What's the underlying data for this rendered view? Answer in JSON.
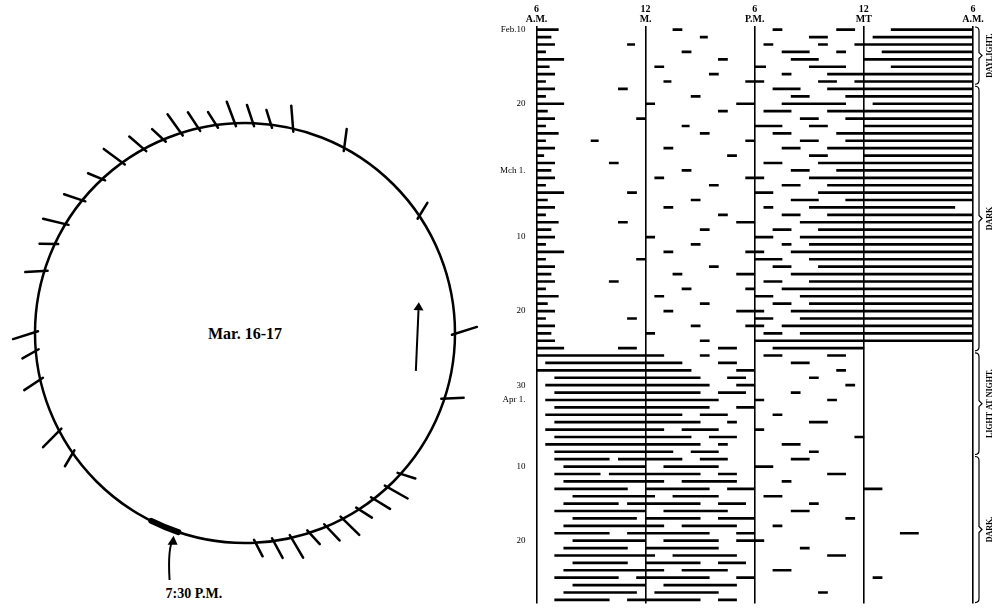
{
  "chart_data": {
    "type": "bar",
    "orientation": "horizontal",
    "color": "#000000",
    "grid": true,
    "xlim": [
      6,
      30
    ],
    "xticks": [
      {
        "value": 6,
        "label": "6 A.M."
      },
      {
        "value": 12,
        "label": "12 M."
      },
      {
        "value": 18,
        "label": "6 P.M."
      },
      {
        "value": 24,
        "label": "12 MT"
      },
      {
        "value": 30,
        "label": "6 A.M."
      }
    ],
    "categories": [
      "Feb.10",
      null,
      null,
      null,
      null,
      null,
      null,
      null,
      null,
      null,
      "20",
      null,
      null,
      null,
      null,
      null,
      null,
      null,
      null,
      "Mch 1.",
      null,
      null,
      null,
      null,
      null,
      null,
      null,
      null,
      "10",
      null,
      null,
      null,
      null,
      null,
      null,
      null,
      null,
      null,
      "20",
      null,
      null,
      null,
      null,
      null,
      null,
      null,
      null,
      null,
      "30",
      null,
      "Apr 1.",
      null,
      null,
      null,
      null,
      null,
      null,
      null,
      null,
      "10",
      null,
      null,
      null,
      null,
      null,
      null,
      null,
      null,
      null,
      "20",
      null,
      null,
      null,
      null,
      null,
      null,
      null,
      null
    ],
    "values": [
      [
        [
          6,
          7.2
        ],
        [
          13.5,
          14
        ],
        [
          19,
          19.5
        ],
        [
          22.5,
          23.5
        ],
        [
          25.5,
          30
        ]
      ],
      [
        [
          6,
          6.8
        ],
        [
          15,
          15.4
        ],
        [
          21,
          22
        ],
        [
          24.5,
          30
        ]
      ],
      [
        [
          6,
          7
        ],
        [
          11,
          11.4
        ],
        [
          18.5,
          19
        ],
        [
          21.5,
          22
        ],
        [
          23.5,
          30
        ]
      ],
      [
        [
          6,
          6.5
        ],
        [
          14,
          14.5
        ],
        [
          19.5,
          21
        ],
        [
          22.5,
          23
        ],
        [
          25,
          30
        ]
      ],
      [
        [
          6,
          7.5
        ],
        [
          16,
          16.5
        ],
        [
          20,
          21.5
        ],
        [
          24,
          30
        ]
      ],
      [
        [
          6,
          6.7
        ],
        [
          12.5,
          13
        ],
        [
          18,
          18.6
        ],
        [
          21,
          23
        ],
        [
          25.5,
          30
        ]
      ],
      [
        [
          6,
          7
        ],
        [
          15.5,
          16
        ],
        [
          19.5,
          20
        ],
        [
          22,
          30
        ]
      ],
      [
        [
          6,
          6.5
        ],
        [
          13,
          13.4
        ],
        [
          17.5,
          18.5
        ],
        [
          21.5,
          22.5
        ],
        [
          23.5,
          30
        ]
      ],
      [
        [
          6,
          7
        ],
        [
          10.5,
          11
        ],
        [
          19,
          20.5
        ],
        [
          22,
          30
        ]
      ],
      [
        [
          6,
          6.5
        ],
        [
          14.5,
          15
        ],
        [
          20,
          21
        ],
        [
          23,
          30
        ]
      ],
      [
        [
          6,
          7.5
        ],
        [
          12,
          12.5
        ],
        [
          17,
          18
        ],
        [
          19.5,
          23
        ],
        [
          24.5,
          30
        ]
      ],
      [
        [
          6,
          6.6
        ],
        [
          16,
          16.5
        ],
        [
          18.5,
          20
        ],
        [
          22,
          30
        ]
      ],
      [
        [
          6,
          7
        ],
        [
          11.5,
          12
        ],
        [
          20.5,
          21.5
        ],
        [
          23,
          30
        ]
      ],
      [
        [
          6,
          6.5
        ],
        [
          14,
          14.4
        ],
        [
          18,
          19.5
        ],
        [
          21,
          22
        ],
        [
          24,
          30
        ]
      ],
      [
        [
          6,
          7.2
        ],
        [
          15,
          15.5
        ],
        [
          19,
          20
        ],
        [
          22.5,
          30
        ]
      ],
      [
        [
          6,
          6.5
        ],
        [
          9,
          9.4
        ],
        [
          17.5,
          18
        ],
        [
          20.5,
          21.5
        ],
        [
          23,
          30
        ]
      ],
      [
        [
          6,
          7
        ],
        [
          13,
          13.5
        ],
        [
          19.5,
          20.5
        ],
        [
          22,
          30
        ]
      ],
      [
        [
          6,
          6.4
        ],
        [
          16.5,
          17
        ],
        [
          21,
          22
        ],
        [
          24,
          30
        ]
      ],
      [
        [
          6,
          7
        ],
        [
          10,
          10.5
        ],
        [
          18.5,
          19.5
        ],
        [
          21.5,
          30
        ]
      ],
      [
        [
          6,
          6.8
        ],
        [
          14,
          14.5
        ],
        [
          20,
          21
        ],
        [
          22.5,
          30
        ]
      ],
      [
        [
          6,
          7
        ],
        [
          12.5,
          13
        ],
        [
          17.5,
          18.5
        ],
        [
          21,
          30
        ]
      ],
      [
        [
          6,
          6.5
        ],
        [
          15.5,
          16
        ],
        [
          19.5,
          20.5
        ],
        [
          22,
          30
        ]
      ],
      [
        [
          6,
          7.5
        ],
        [
          11,
          11.5
        ],
        [
          18,
          19
        ],
        [
          21.5,
          30
        ]
      ],
      [
        [
          6,
          6.6
        ],
        [
          14.5,
          15
        ],
        [
          20,
          21.5
        ],
        [
          23,
          30
        ]
      ],
      [
        [
          6,
          7
        ],
        [
          13,
          13.5
        ],
        [
          18.5,
          19
        ],
        [
          21,
          29
        ]
      ],
      [
        [
          6,
          6.5
        ],
        [
          16,
          16.5
        ],
        [
          19.5,
          20.5
        ],
        [
          22,
          30
        ]
      ],
      [
        [
          6,
          7.2
        ],
        [
          10.5,
          11
        ],
        [
          17,
          18
        ],
        [
          20.5,
          30
        ]
      ],
      [
        [
          6,
          6.8
        ],
        [
          15,
          15.5
        ],
        [
          19,
          20
        ],
        [
          21.5,
          30
        ]
      ],
      [
        [
          6,
          7
        ],
        [
          12,
          12.5
        ],
        [
          18,
          19
        ],
        [
          20.5,
          30
        ]
      ],
      [
        [
          6,
          6.5
        ],
        [
          14.5,
          15
        ],
        [
          19.5,
          20
        ],
        [
          21,
          30
        ]
      ],
      [
        [
          6,
          7.5
        ],
        [
          13,
          13.5
        ],
        [
          17.5,
          18.5
        ],
        [
          20,
          30
        ]
      ],
      [
        [
          6,
          6.5
        ],
        [
          11.5,
          12
        ],
        [
          18,
          19.5
        ],
        [
          21,
          30
        ]
      ],
      [
        [
          6,
          7
        ],
        [
          15.5,
          16
        ],
        [
          19,
          20
        ],
        [
          21.5,
          30
        ]
      ],
      [
        [
          6,
          6.8
        ],
        [
          13.5,
          14
        ],
        [
          17,
          18
        ],
        [
          20,
          30
        ]
      ],
      [
        [
          6,
          7
        ],
        [
          10,
          10.5
        ],
        [
          18.5,
          19.5
        ],
        [
          21,
          30
        ]
      ],
      [
        [
          6,
          6.5
        ],
        [
          14,
          14.5
        ],
        [
          17.5,
          18
        ],
        [
          19.5,
          30
        ]
      ],
      [
        [
          6,
          7.2
        ],
        [
          12.5,
          13
        ],
        [
          18,
          19
        ],
        [
          20.5,
          30
        ]
      ],
      [
        [
          6,
          6.6
        ],
        [
          15,
          15.5
        ],
        [
          19,
          20
        ],
        [
          21,
          30
        ]
      ],
      [
        [
          6,
          7
        ],
        [
          13,
          13.5
        ],
        [
          17,
          18.5
        ],
        [
          20,
          30
        ]
      ],
      [
        [
          6,
          6.5
        ],
        [
          11,
          11.5
        ],
        [
          18,
          19
        ],
        [
          20.5,
          30
        ]
      ],
      [
        [
          6,
          7
        ],
        [
          14.5,
          15
        ],
        [
          17.5,
          18.5
        ],
        [
          19.5,
          30
        ]
      ],
      [
        [
          6,
          6.8
        ],
        [
          12,
          12.5
        ],
        [
          18.5,
          19.5
        ],
        [
          20.5,
          30
        ]
      ],
      [
        [
          6,
          7
        ],
        [
          15,
          15.5
        ],
        [
          18,
          30
        ]
      ],
      [
        [
          6,
          7.5
        ],
        [
          10.5,
          11.5
        ],
        [
          16,
          17
        ],
        [
          19,
          24
        ]
      ],
      [
        [
          6,
          13
        ],
        [
          15,
          15.5
        ],
        [
          18.5,
          19.5
        ],
        [
          22,
          23
        ]
      ],
      [
        [
          6.5,
          14
        ],
        [
          16,
          17
        ],
        [
          20,
          21
        ]
      ],
      [
        [
          6,
          14.5
        ],
        [
          17,
          18
        ],
        [
          22.5,
          23
        ]
      ],
      [
        [
          7,
          15
        ],
        [
          16.5,
          17.5
        ],
        [
          21,
          21.5
        ]
      ],
      [
        [
          6.5,
          15.5
        ],
        [
          17,
          18
        ],
        [
          23,
          23.5
        ]
      ],
      [
        [
          7,
          15
        ],
        [
          16,
          17.5
        ],
        [
          20,
          20.5
        ]
      ],
      [
        [
          6.5,
          16
        ],
        [
          18,
          18.5
        ],
        [
          22,
          22.5
        ]
      ],
      [
        [
          7,
          15.5
        ],
        [
          17,
          18
        ]
      ],
      [
        [
          6.5,
          14
        ],
        [
          15,
          16.5
        ],
        [
          19,
          19.5
        ]
      ],
      [
        [
          7,
          15
        ],
        [
          16.5,
          17
        ],
        [
          21,
          22
        ]
      ],
      [
        [
          6.5,
          13
        ],
        [
          14,
          16
        ],
        [
          18,
          18.5
        ]
      ],
      [
        [
          7,
          14.5
        ],
        [
          15.5,
          17
        ],
        [
          23.5,
          24
        ]
      ],
      [
        [
          6.5,
          15
        ],
        [
          16,
          16.5
        ],
        [
          19.5,
          20.5
        ]
      ],
      [
        [
          7,
          13.5
        ],
        [
          14.5,
          16
        ],
        [
          21,
          21.5
        ]
      ],
      [
        [
          7,
          10
        ],
        [
          10.5,
          14
        ],
        [
          15,
          16.5
        ],
        [
          20,
          21
        ]
      ],
      [
        [
          7.5,
          12
        ],
        [
          13,
          16
        ],
        [
          18,
          19
        ]
      ],
      [
        [
          7,
          9.5
        ],
        [
          10,
          15
        ],
        [
          16,
          17
        ],
        [
          22,
          23
        ]
      ],
      [
        [
          7.5,
          13
        ],
        [
          14,
          17
        ],
        [
          19.5,
          20
        ]
      ],
      [
        [
          7,
          11
        ],
        [
          12,
          15.5
        ],
        [
          16.5,
          18
        ],
        [
          24,
          25
        ]
      ],
      [
        [
          8,
          12.5
        ],
        [
          13.5,
          16
        ],
        [
          18.5,
          19.5
        ]
      ],
      [
        [
          7.5,
          10.5
        ],
        [
          11,
          15
        ],
        [
          16,
          17.5
        ],
        [
          21,
          21.5
        ]
      ],
      [
        [
          7,
          12
        ],
        [
          13,
          16.5
        ],
        [
          20,
          21
        ]
      ],
      [
        [
          8,
          11.5
        ],
        [
          12,
          15
        ],
        [
          16,
          18
        ],
        [
          23,
          23.5
        ]
      ],
      [
        [
          7.5,
          13
        ],
        [
          14,
          17
        ],
        [
          19,
          19.5
        ]
      ],
      [
        [
          7,
          10
        ],
        [
          11,
          15.5
        ],
        [
          17,
          18
        ],
        [
          26,
          27
        ]
      ],
      [
        [
          8,
          12
        ],
        [
          13,
          16
        ],
        [
          17,
          18.5
        ]
      ],
      [
        [
          7.5,
          11
        ],
        [
          12,
          16
        ],
        [
          20.5,
          21
        ]
      ],
      [
        [
          7,
          12.5
        ],
        [
          13.5,
          17
        ],
        [
          22,
          23
        ]
      ],
      [
        [
          8,
          11
        ],
        [
          12,
          15
        ],
        [
          16,
          17.5
        ]
      ],
      [
        [
          7.5,
          13
        ],
        [
          14,
          16.5
        ],
        [
          19,
          20
        ]
      ],
      [
        [
          7,
          10.5
        ],
        [
          11.5,
          15.5
        ],
        [
          17,
          18
        ],
        [
          24.5,
          25
        ]
      ],
      [
        [
          8,
          12
        ],
        [
          13,
          17
        ]
      ],
      [
        [
          7.5,
          11.5
        ],
        [
          12.5,
          16
        ],
        [
          21.5,
          22
        ]
      ],
      [
        [
          7,
          10
        ],
        [
          11,
          15
        ],
        [
          16,
          17
        ]
      ]
    ]
  },
  "conditions": [
    {
      "label": "DAYLIGHT.",
      "from": 0,
      "to": 7
    },
    {
      "label": "DARK",
      "from": 8,
      "to": 43
    },
    {
      "label": "LIGHT AT NIGHT.",
      "from": 44,
      "to": 57
    },
    {
      "label": "DARK.",
      "from": 58,
      "to": 77
    }
  ],
  "dial": {
    "label": "Mar. 16-17",
    "start_label": "7:30 P.M.",
    "marks": [
      20,
      25,
      30,
      35,
      40,
      45,
      50,
      55,
      60,
      65,
      89,
      107,
      141,
      169,
      184,
      190,
      195,
      200,
      205,
      210,
      215,
      220,
      226,
      233,
      240,
      248,
      256,
      262,
      270,
      287,
      292,
      300,
      315,
      322
    ]
  }
}
